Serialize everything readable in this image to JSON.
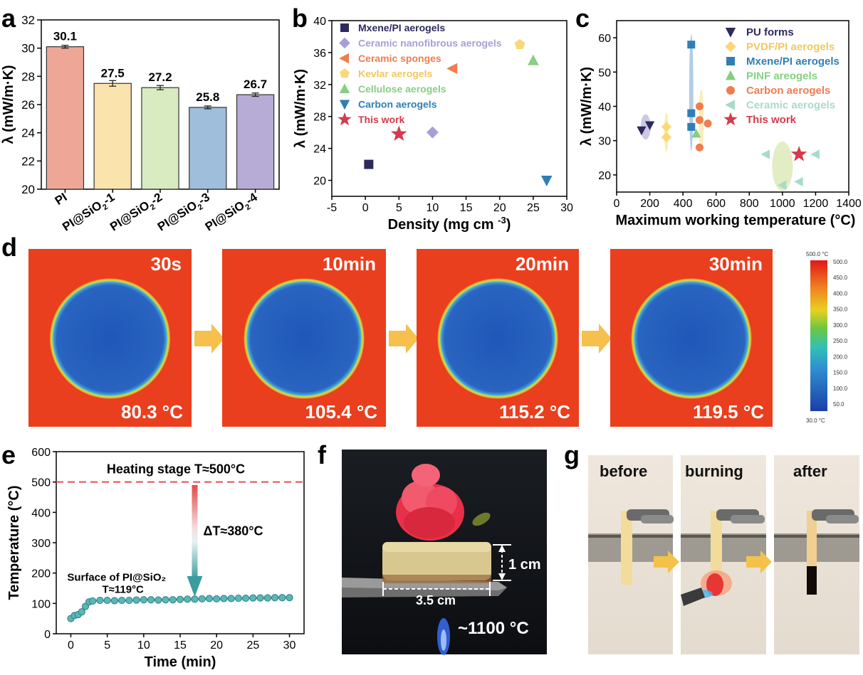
{
  "colors": {
    "pi": "#eea797",
    "s1": "#fbe3ad",
    "s2": "#d9ebc1",
    "s3": "#9fbedc",
    "s4": "#b7acd6",
    "mx": "#2d2a5e",
    "cer": "#a79fd8",
    "sp": "#ef7d4f",
    "kev": "#fbd877",
    "cel": "#86cf82",
    "carb": "#2f7fb5",
    "star": "#d43b4d"
  },
  "panel_letters": [
    "a",
    "b",
    "c",
    "d",
    "e",
    "f",
    "g"
  ],
  "chart_data": [
    {
      "panel": "a",
      "type": "bar",
      "categories": [
        "PI",
        "PI@SiO2-1",
        "PI@SiO2-2",
        "PI@SiO2-3",
        "PI@SiO2-4"
      ],
      "values": [
        30.1,
        27.5,
        27.2,
        25.8,
        26.7
      ],
      "errors": [
        0.1,
        0.2,
        0.15,
        0.1,
        0.12
      ],
      "value_labels": [
        "30.1",
        "27.5",
        "27.2",
        "25.8",
        "26.7"
      ],
      "ylabel": "λ (mW/m·K)",
      "ylim": [
        20,
        32
      ],
      "yticks": [
        20,
        22,
        24,
        26,
        28,
        30,
        32
      ]
    },
    {
      "panel": "b",
      "type": "scatter",
      "xlabel": "Density (mg cm",
      "xlabel_sup": "-3",
      "xlabel_end": ")",
      "ylabel": "λ (mW/m·K)",
      "xlim": [
        -5,
        30
      ],
      "ylim": [
        18,
        40
      ],
      "xticks": [
        -5,
        0,
        5,
        10,
        15,
        20,
        25,
        30
      ],
      "yticks": [
        20,
        24,
        28,
        32,
        36,
        40
      ],
      "series": [
        {
          "name": "Mxene/PI aerogels",
          "marker": "square",
          "color": "#2d2a5e",
          "points": [
            [
              0.5,
              22
            ]
          ]
        },
        {
          "name": "Ceramic nanofibrous aerogels",
          "marker": "diamond",
          "color": "#a79fd8",
          "points": [
            [
              10,
              26
            ]
          ]
        },
        {
          "name": "Ceramic sponges",
          "marker": "tri-left",
          "color": "#ef7d4f",
          "points": [
            [
              13,
              34
            ]
          ]
        },
        {
          "name": "Kevlar aerogels",
          "marker": "pentagon",
          "color": "#fbd877",
          "points": [
            [
              23,
              37
            ]
          ]
        },
        {
          "name": "Cellulose aerogels",
          "marker": "tri-up",
          "color": "#86cf82",
          "points": [
            [
              25,
              35
            ]
          ]
        },
        {
          "name": "Carbon aerogels",
          "marker": "tri-down",
          "color": "#2f7fb5",
          "points": [
            [
              27,
              20
            ]
          ]
        },
        {
          "name": "This work",
          "marker": "star",
          "color": "#d43b4d",
          "points": [
            [
              5,
              25.8
            ]
          ]
        }
      ]
    },
    {
      "panel": "c",
      "type": "scatter",
      "xlabel": "Maximum working temperature (°C)",
      "ylabel": "λ (mW/m·K)",
      "xlim": [
        0,
        1400
      ],
      "ylim": [
        15,
        65
      ],
      "xticks": [
        0,
        200,
        400,
        600,
        800,
        1000,
        1200,
        1400
      ],
      "yticks": [
        20,
        30,
        40,
        50,
        60
      ],
      "series": [
        {
          "name": "PU forms",
          "marker": "tri-down",
          "color": "#2d2a5e",
          "points": [
            [
              150,
              33
            ],
            [
              200,
              34.5
            ]
          ]
        },
        {
          "name": "PVDF/PI aerogels",
          "marker": "diamond",
          "color": "#fbd877",
          "points": [
            [
              300,
              34
            ],
            [
              300,
              31
            ]
          ]
        },
        {
          "name": "Mxene/PI aerogels",
          "marker": "square",
          "color": "#2f7fb5",
          "points": [
            [
              450,
              58
            ],
            [
              450,
              38
            ],
            [
              450,
              34
            ]
          ]
        },
        {
          "name": "PINF areogels",
          "marker": "tri-up",
          "color": "#86cf82",
          "points": [
            [
              480,
              32
            ]
          ]
        },
        {
          "name": "Carbon aerogels",
          "marker": "circle",
          "color": "#ef7d4f",
          "points": [
            [
              500,
              40
            ],
            [
              500,
              36
            ],
            [
              550,
              35
            ],
            [
              500,
              28
            ]
          ]
        },
        {
          "name": "Ceramic aerogels",
          "marker": "tri-left",
          "color": "#a8dbc9",
          "points": [
            [
              900,
              26
            ],
            [
              1200,
              26
            ],
            [
              1000,
              17
            ],
            [
              1100,
              18
            ]
          ]
        },
        {
          "name": "This work",
          "marker": "star",
          "color": "#d43b4d",
          "points": [
            [
              1100,
              26
            ]
          ]
        }
      ]
    },
    {
      "panel": "d",
      "type": "heatmap",
      "frames": [
        {
          "time": "30s",
          "temp": "80.3 °C"
        },
        {
          "time": "10min",
          "temp": "105.4 °C"
        },
        {
          "time": "20min",
          "temp": "115.2 °C"
        },
        {
          "time": "30min",
          "temp": "119.5 °C"
        }
      ],
      "colorbar": {
        "top": "500.0 °C",
        "bottom": "30.0 °C",
        "ticks": [
          "500.0",
          "450.0",
          "400.0",
          "350.0",
          "300.0",
          "250.0",
          "200.0",
          "150.0",
          "100.0",
          "50.0"
        ]
      }
    },
    {
      "panel": "e",
      "type": "line",
      "xlabel": "Time (min)",
      "ylabel": "Temperature (°C)",
      "xlim": [
        -2,
        32
      ],
      "ylim": [
        0,
        600
      ],
      "xticks": [
        0,
        5,
        10,
        15,
        20,
        25,
        30
      ],
      "yticks": [
        0,
        100,
        200,
        300,
        400,
        500,
        600
      ],
      "heating_label": "Heating stage T≈500°C",
      "heating_value": 500,
      "delta_label": "ΔT≈380°C",
      "surface_label_1": "Surface of PI@SiO₂",
      "surface_label_2": "T≈119°C",
      "series": [
        {
          "name": "Surface of PI@SiO2",
          "x": [
            0,
            0.5,
            1,
            1.5,
            2,
            2.5,
            3,
            4,
            5,
            6,
            7,
            8,
            9,
            10,
            11,
            12,
            13,
            14,
            15,
            16,
            17,
            18,
            19,
            20,
            21,
            22,
            23,
            24,
            25,
            26,
            27,
            28,
            29,
            30
          ],
          "y": [
            50,
            60,
            63,
            72,
            90,
            105,
            108,
            110,
            110,
            109,
            110,
            110,
            111,
            112,
            112,
            111,
            112,
            112,
            113,
            114,
            114,
            115,
            116,
            115,
            116,
            116,
            117,
            117,
            118,
            118,
            118,
            119,
            119,
            119
          ]
        }
      ]
    }
  ],
  "panel_f": {
    "dim_height": "1 cm",
    "dim_width": "3.5 cm",
    "flame_temp": "~1100 °C"
  },
  "panel_g": {
    "labels": [
      "before",
      "burning",
      "after"
    ]
  }
}
